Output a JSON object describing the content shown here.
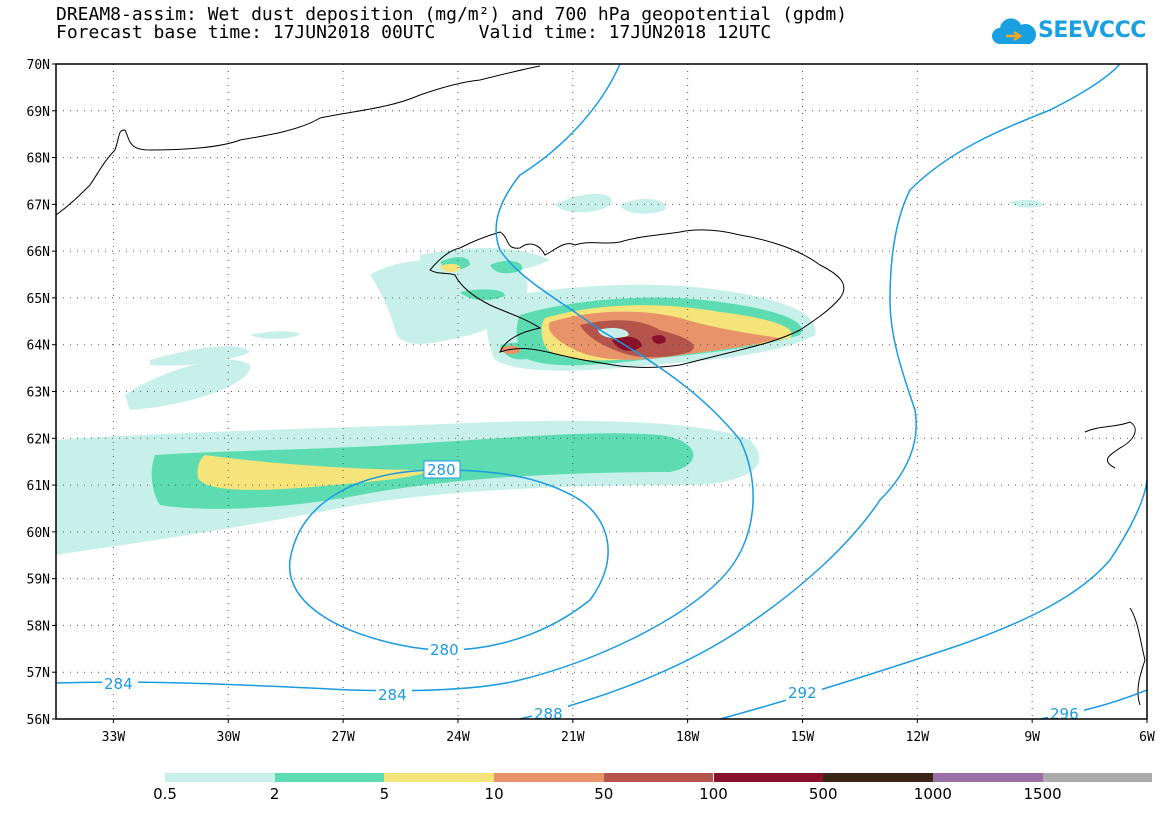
{
  "title_line1": "DREAM8-assim: Wet dust deposition (mg/m²) and 700 hPa geopotential (gpdm)",
  "title_line2": "Forecast base time: 17JUN2018 00UTC    Valid time: 17JUN2018 12UTC",
  "logo_text": "SEEVCCC",
  "map": {
    "lat_range": [
      56,
      70
    ],
    "lon_range": [
      -34.5,
      -6
    ],
    "lat_labels": [
      "70N",
      "69N",
      "68N",
      "67N",
      "66N",
      "65N",
      "64N",
      "63N",
      "62N",
      "61N",
      "60N",
      "59N",
      "58N",
      "57N",
      "56N"
    ],
    "lon_labels": [
      "33W",
      "30W",
      "27W",
      "24W",
      "21W",
      "18W",
      "15W",
      "12W",
      "9W",
      "6W"
    ]
  },
  "contours": {
    "variable": "700 hPa geopotential",
    "labels": [
      "280",
      "280",
      "284",
      "284",
      "288",
      "292",
      "296"
    ],
    "color": "#1b9be0"
  },
  "legend": {
    "labels": [
      "0.5",
      "2",
      "5",
      "10",
      "50",
      "100",
      "500",
      "1000",
      "1500"
    ],
    "colors": [
      "#c8f0ea",
      "#5ddcb1",
      "#f5e47a",
      "#e8936a",
      "#b5544a",
      "#8a0f2a",
      "#3a2418",
      "#9a6fa8",
      "#aaaaaa"
    ]
  }
}
